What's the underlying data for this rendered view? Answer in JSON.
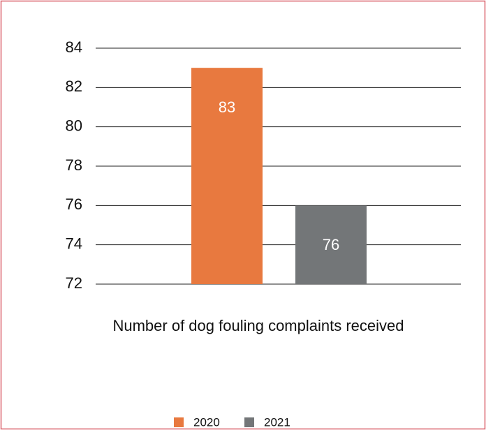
{
  "chart_data": {
    "type": "bar",
    "categories": [
      "Number of dog fouling complaints received"
    ],
    "series": [
      {
        "name": "2020",
        "color": "#e8793f",
        "values": [
          83
        ]
      },
      {
        "name": "2021",
        "color": "#737678",
        "values": [
          76
        ]
      }
    ],
    "ylim": [
      72,
      84
    ],
    "yticks": [
      72,
      74,
      76,
      78,
      80,
      82,
      84
    ],
    "grid": true,
    "legend": "bottom"
  }
}
